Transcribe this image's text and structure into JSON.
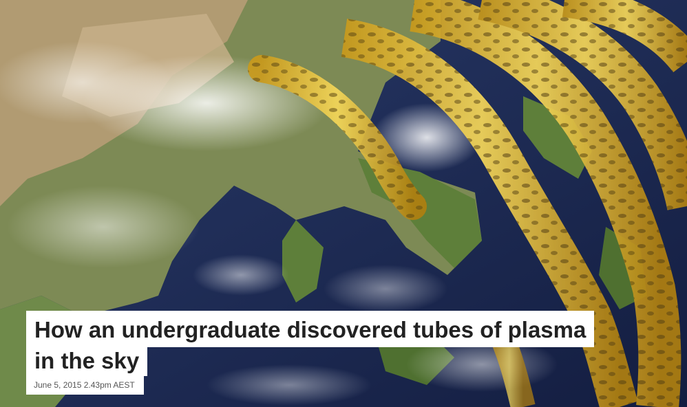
{
  "article": {
    "title_line1": "How an undergraduate discovered tubes of plasma",
    "title_line2": "in the sky",
    "published": "June 5, 2015 2.43pm AEST"
  },
  "image": {
    "ocean_color": "#1b2a5a",
    "land_color": "#6f8a4a",
    "tube_color": "#e8c23a"
  }
}
